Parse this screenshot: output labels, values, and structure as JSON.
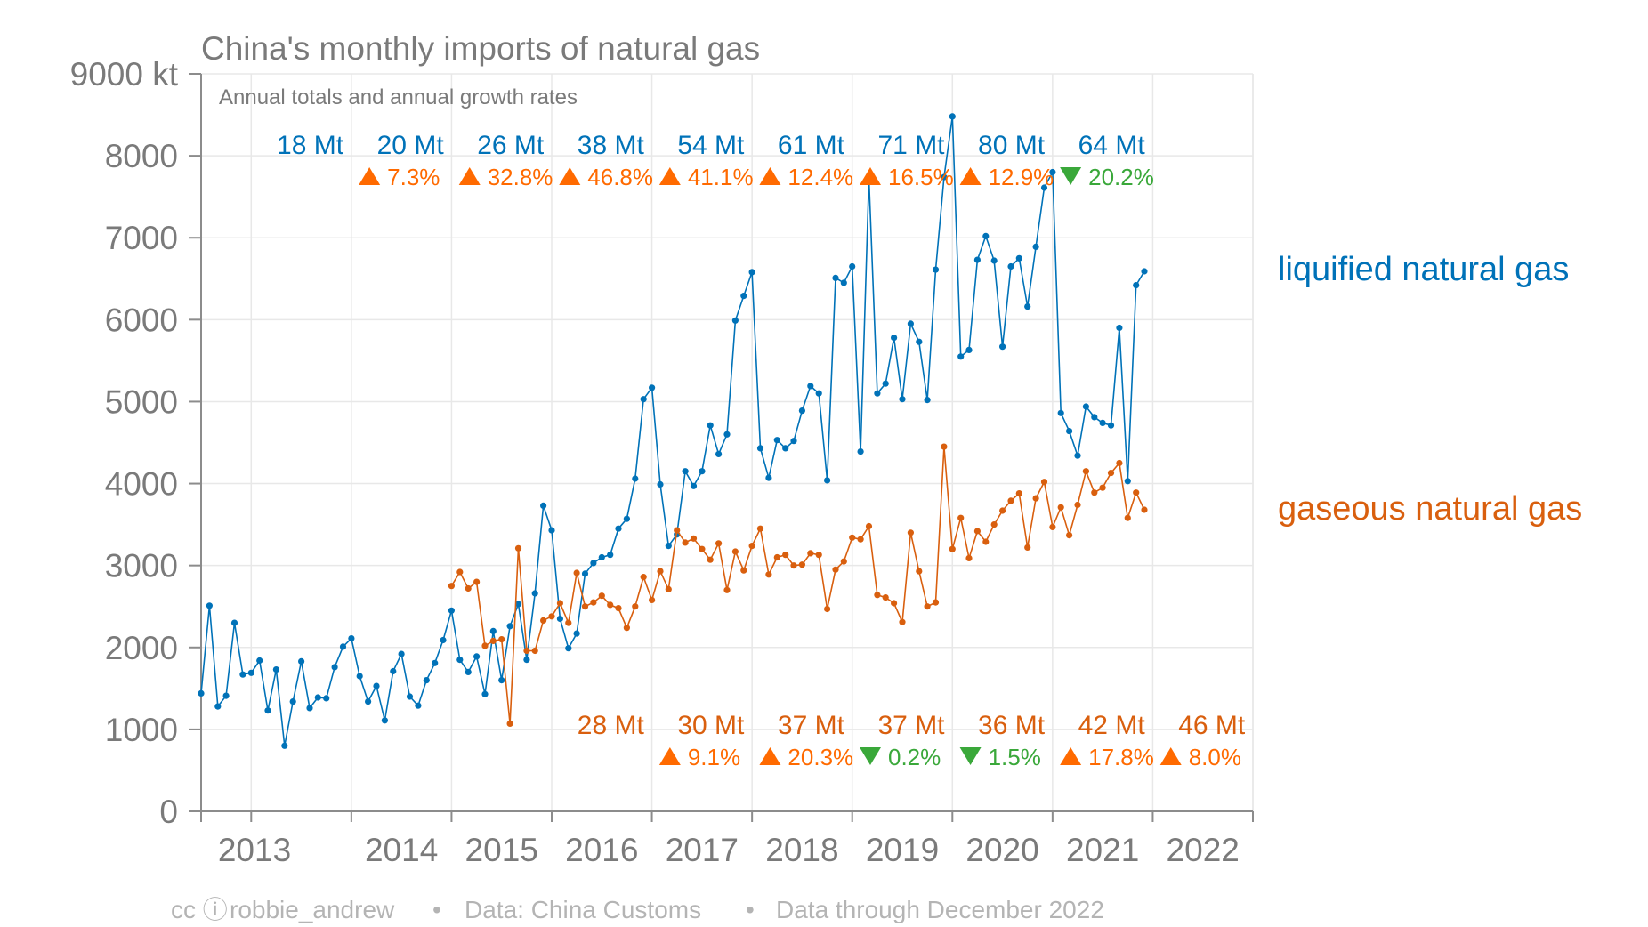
{
  "header": {
    "title": "China's monthly imports of natural gas",
    "subtitle": "Annual totals and annual growth rates"
  },
  "footer": {
    "cc_icons": "cc ⓘ",
    "author": "robbie_andrew",
    "sep1": "•",
    "source": "Data: China Customs",
    "sep2": "•",
    "through": "Data through December 2022"
  },
  "colors": {
    "lng": "#0072b8",
    "gas": "#d95f0e",
    "increase": "#ff6a00",
    "decrease": "#3aa83a",
    "grid": "#e8e8e8",
    "axis": "#8c8c8c"
  },
  "chart_data": {
    "type": "line",
    "title": "China's monthly imports of natural gas",
    "subtitle": "Annual totals and annual growth rates",
    "ylim": [
      0,
      9000
    ],
    "yunit": "kt",
    "y_tick_labels": [
      "0",
      "1000",
      "2000",
      "3000",
      "4000",
      "5000",
      "6000",
      "7000",
      "8000",
      "9000 kt"
    ],
    "y_tick_values": [
      0,
      1000,
      2000,
      3000,
      4000,
      5000,
      6000,
      7000,
      8000,
      9000
    ],
    "x_tick_labels": [
      "2013",
      "2014",
      "2015",
      "2016",
      "2017",
      "2018",
      "2019",
      "2020",
      "2021",
      "2022"
    ],
    "grid": true,
    "series": [
      {
        "name": "liquified natural gas",
        "start": "2012-07",
        "frequency": "monthly",
        "values": [
          1440,
          2510,
          1280,
          1410,
          2300,
          1670,
          1690,
          1840,
          1230,
          1730,
          800,
          1340,
          1830,
          1260,
          1390,
          1380,
          1760,
          2010,
          2110,
          1650,
          1340,
          1530,
          1110,
          1710,
          1920,
          1400,
          1290,
          1600,
          1810,
          2090,
          2450,
          1850,
          1700,
          1890,
          1430,
          2200,
          1600,
          2260,
          2530,
          1850,
          2660,
          3730,
          3430,
          2350,
          1990,
          2170,
          2900,
          3030,
          3100,
          3130,
          3450,
          3570,
          4060,
          5030,
          5170,
          3990,
          3240,
          3380,
          4150,
          3970,
          4150,
          4710,
          4360,
          4600,
          5990,
          6290,
          6580,
          4430,
          4070,
          4530,
          4430,
          4520,
          4890,
          5190,
          5100,
          4040,
          6510,
          6450,
          6650,
          4390,
          7730,
          5100,
          5220,
          5780,
          5030,
          5950,
          5730,
          5020,
          6610,
          7740,
          8480,
          5550,
          5630,
          6730,
          7020,
          6720,
          5670,
          6650,
          6750,
          6160,
          6890,
          7610,
          7800,
          4860,
          4640,
          4340,
          4940,
          4810,
          4740,
          4710,
          5900,
          4030,
          6420,
          6590
        ]
      },
      {
        "name": "gaseous natural gas",
        "start": "2015-01",
        "frequency": "monthly",
        "values": [
          2750,
          2920,
          2720,
          2800,
          2020,
          2080,
          2100,
          1070,
          3210,
          1960,
          1960,
          2330,
          2380,
          2540,
          2300,
          2910,
          2500,
          2550,
          2630,
          2520,
          2480,
          2240,
          2500,
          2860,
          2580,
          2930,
          2710,
          3430,
          3280,
          3330,
          3200,
          3070,
          3270,
          2700,
          3170,
          2940,
          3240,
          3450,
          2890,
          3100,
          3130,
          3000,
          3010,
          3150,
          3130,
          2470,
          2950,
          3050,
          3340,
          3320,
          3480,
          2640,
          2610,
          2540,
          2310,
          3400,
          2930,
          2500,
          2550,
          4450,
          3200,
          3580,
          3090,
          3420,
          3290,
          3500,
          3670,
          3790,
          3880,
          3220,
          3820,
          4020,
          3470,
          3710,
          3370,
          3740,
          4150,
          3890,
          3950,
          4130,
          4250,
          3580,
          3890,
          3680
        ]
      }
    ],
    "series_labels": [
      "liquified natural gas",
      "gaseous natural gas"
    ],
    "annotations": {
      "lng": [
        {
          "year": "2013",
          "total": "18 Mt",
          "rate": "",
          "dir": ""
        },
        {
          "year": "2014",
          "total": "20 Mt",
          "rate": "7.3%",
          "dir": "up"
        },
        {
          "year": "2015",
          "total": "26 Mt",
          "rate": "32.8%",
          "dir": "up"
        },
        {
          "year": "2016",
          "total": "38 Mt",
          "rate": "46.8%",
          "dir": "up"
        },
        {
          "year": "2017",
          "total": "54 Mt",
          "rate": "41.1%",
          "dir": "up"
        },
        {
          "year": "2018",
          "total": "61 Mt",
          "rate": "12.4%",
          "dir": "up"
        },
        {
          "year": "2019",
          "total": "71 Mt",
          "rate": "16.5%",
          "dir": "up"
        },
        {
          "year": "2020",
          "total": "80 Mt",
          "rate": "12.9%",
          "dir": "up"
        },
        {
          "year": "2021",
          "total": "64 Mt",
          "rate": "20.2%",
          "dir": "down"
        }
      ],
      "gas": [
        {
          "year": "2016",
          "total": "28 Mt",
          "rate": "",
          "dir": ""
        },
        {
          "year": "2017",
          "total": "30 Mt",
          "rate": "9.1%",
          "dir": "up"
        },
        {
          "year": "2018",
          "total": "37 Mt",
          "rate": "20.3%",
          "dir": "up"
        },
        {
          "year": "2019",
          "total": "37 Mt",
          "rate": "0.2%",
          "dir": "down"
        },
        {
          "year": "2020",
          "total": "36 Mt",
          "rate": "1.5%",
          "dir": "down"
        },
        {
          "year": "2021",
          "total": "42 Mt",
          "rate": "17.8%",
          "dir": "up"
        },
        {
          "year": "2022",
          "total": "46 Mt",
          "rate": "8.0%",
          "dir": "up"
        }
      ]
    }
  }
}
